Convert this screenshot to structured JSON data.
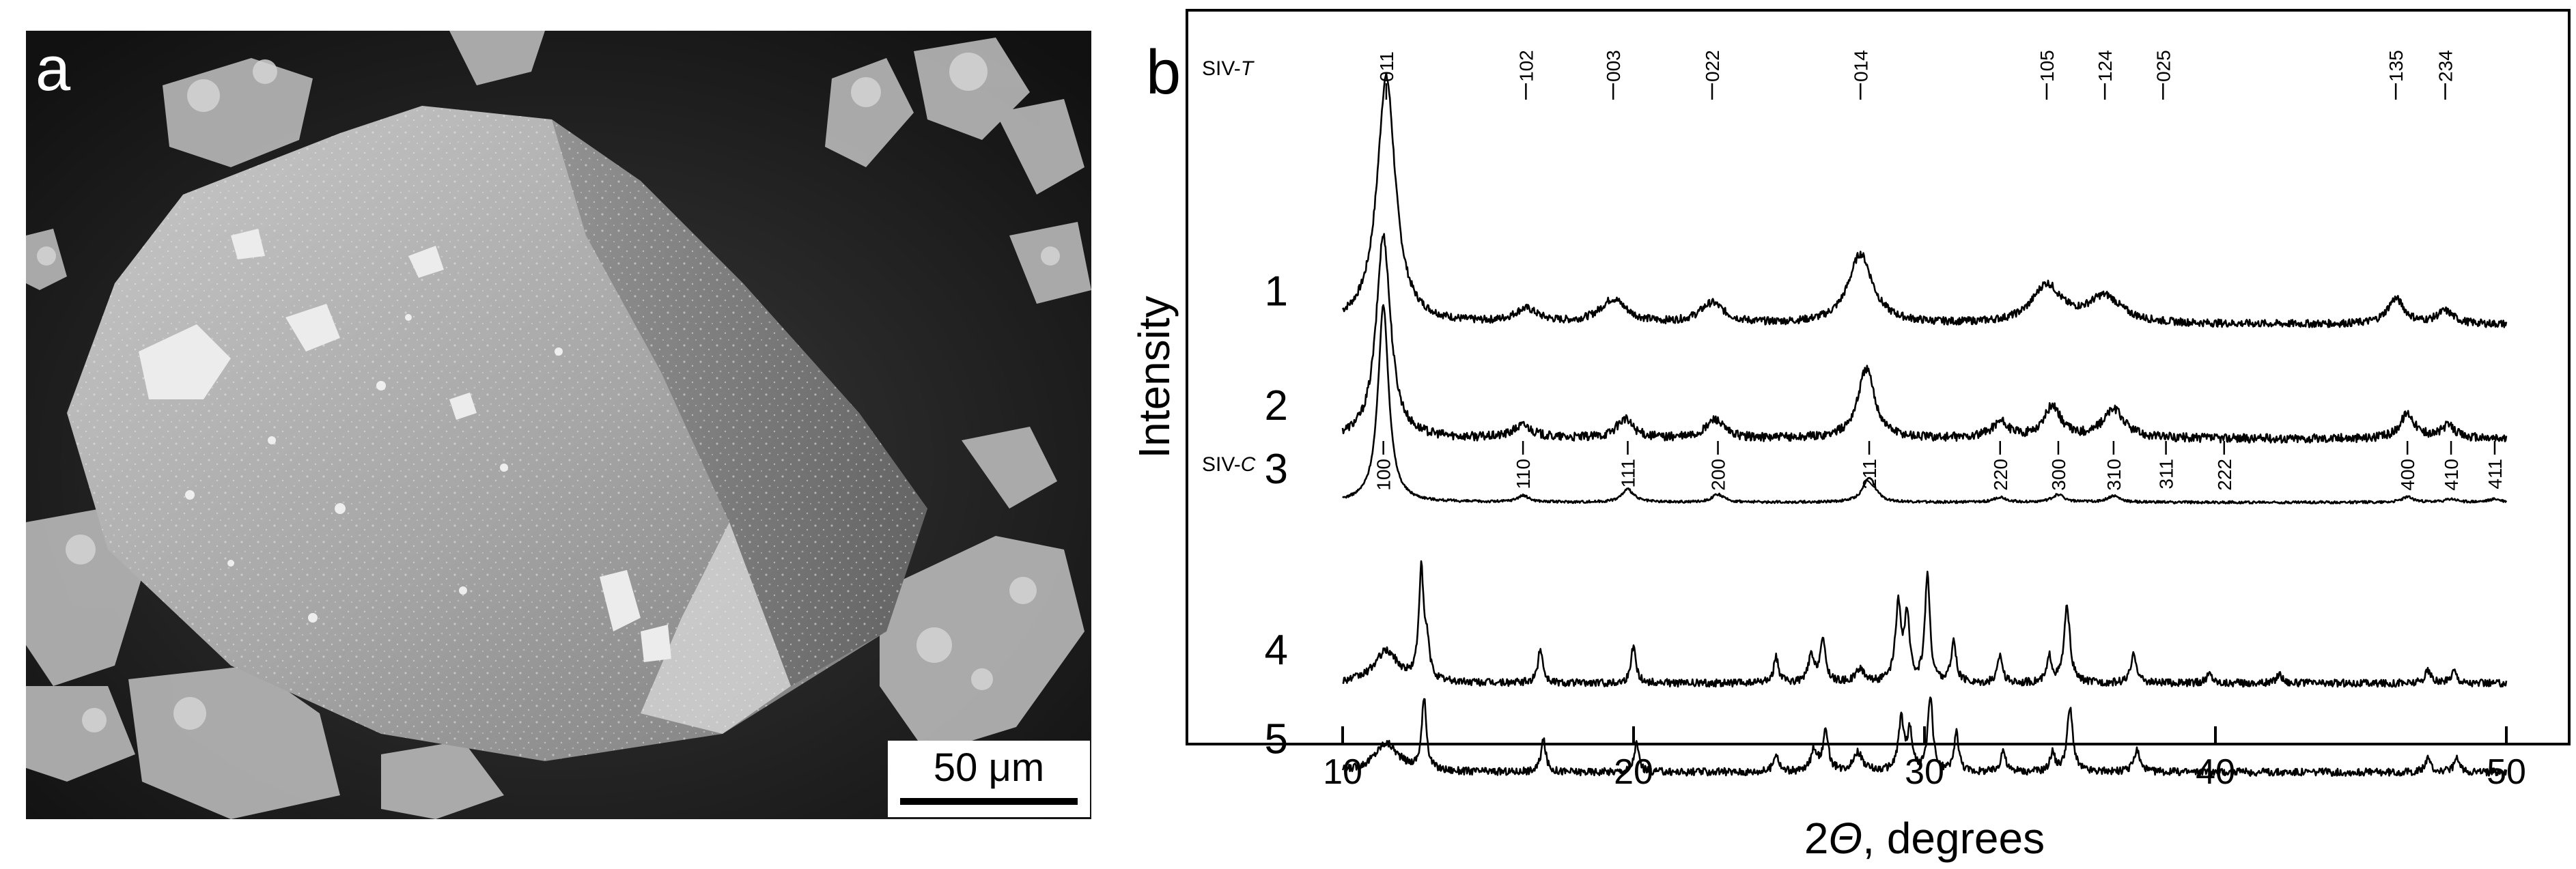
{
  "panels": {
    "a": {
      "label": "a",
      "scale_bar": "50 μm"
    },
    "b": {
      "label": "b"
    }
  },
  "chart_data": {
    "type": "line",
    "xlabel_prefix": "2",
    "xlabel_symbol": "Θ",
    "xlabel_suffix": ", degrees",
    "ylabel": "Intensity",
    "xlim": [
      10,
      50
    ],
    "xticks": [
      10,
      20,
      30,
      40,
      50
    ],
    "y_tick_labels": false,
    "grid": false,
    "reference_sets": [
      {
        "name_prefix": "SIV-",
        "name_suffix": "T",
        "position": "above",
        "reflections": [
          {
            "hkl": "011",
            "x": 11.5
          },
          {
            "hkl": "102",
            "x": 16.3
          },
          {
            "hkl": "003",
            "x": 19.3
          },
          {
            "hkl": "022",
            "x": 22.7
          },
          {
            "hkl": "014",
            "x": 27.8
          },
          {
            "hkl": "105",
            "x": 34.2
          },
          {
            "hkl": "124",
            "x": 36.2
          },
          {
            "hkl": "025",
            "x": 38.2
          },
          {
            "hkl": "135",
            "x": 46.2
          },
          {
            "hkl": "234",
            "x": 47.9
          }
        ]
      },
      {
        "name_prefix": "SIV-",
        "name_suffix": "C",
        "position": "below",
        "reflections": [
          {
            "hkl": "100",
            "x": 11.4
          },
          {
            "hkl": "110",
            "x": 16.2
          },
          {
            "hkl": "111",
            "x": 19.8
          },
          {
            "hkl": "200",
            "x": 22.9
          },
          {
            "hkl": "211",
            "x": 28.1
          },
          {
            "hkl": "220",
            "x": 32.6
          },
          {
            "hkl": "300",
            "x": 34.6
          },
          {
            "hkl": "310",
            "x": 36.5
          },
          {
            "hkl": "311",
            "x": 38.3
          },
          {
            "hkl": "222",
            "x": 40.3
          },
          {
            "hkl": "400",
            "x": 46.6
          },
          {
            "hkl": "410",
            "x": 48.1
          },
          {
            "hkl": "411",
            "x": 49.6
          }
        ]
      }
    ],
    "series": [
      {
        "name": "1",
        "offset": 0.62,
        "baseline": 0.03,
        "noise": 0.006,
        "peaks": [
          {
            "x": 11.5,
            "h": 0.39,
            "w": 0.38
          },
          {
            "x": 16.3,
            "h": 0.022,
            "w": 0.5
          },
          {
            "x": 19.3,
            "h": 0.038,
            "w": 0.55
          },
          {
            "x": 22.7,
            "h": 0.032,
            "w": 0.5
          },
          {
            "x": 27.8,
            "h": 0.11,
            "w": 0.5
          },
          {
            "x": 34.2,
            "h": 0.06,
            "w": 0.6
          },
          {
            "x": 36.2,
            "h": 0.042,
            "w": 0.7
          },
          {
            "x": 46.2,
            "h": 0.04,
            "w": 0.35
          },
          {
            "x": 47.9,
            "h": 0.02,
            "w": 0.35
          }
        ]
      },
      {
        "name": "2",
        "offset": 0.45,
        "baseline": 0.02,
        "noise": 0.007,
        "peaks": [
          {
            "x": 11.4,
            "h": 0.32,
            "w": 0.3
          },
          {
            "x": 16.2,
            "h": 0.02,
            "w": 0.4
          },
          {
            "x": 19.7,
            "h": 0.03,
            "w": 0.35
          },
          {
            "x": 22.8,
            "h": 0.03,
            "w": 0.35
          },
          {
            "x": 28.0,
            "h": 0.11,
            "w": 0.35
          },
          {
            "x": 32.6,
            "h": 0.025,
            "w": 0.35
          },
          {
            "x": 34.4,
            "h": 0.05,
            "w": 0.35
          },
          {
            "x": 36.5,
            "h": 0.045,
            "w": 0.45
          },
          {
            "x": 46.6,
            "h": 0.04,
            "w": 0.3
          },
          {
            "x": 48.0,
            "h": 0.02,
            "w": 0.3
          }
        ]
      },
      {
        "name": "3",
        "offset": 0.365,
        "baseline": 0.005,
        "noise": 0.002,
        "peaks": [
          {
            "x": 11.4,
            "h": 0.31,
            "w": 0.22
          },
          {
            "x": 16.2,
            "h": 0.01,
            "w": 0.25
          },
          {
            "x": 19.8,
            "h": 0.02,
            "w": 0.25
          },
          {
            "x": 22.9,
            "h": 0.012,
            "w": 0.25
          },
          {
            "x": 28.1,
            "h": 0.04,
            "w": 0.25
          },
          {
            "x": 32.6,
            "h": 0.008,
            "w": 0.25
          },
          {
            "x": 34.6,
            "h": 0.012,
            "w": 0.25
          },
          {
            "x": 36.5,
            "h": 0.01,
            "w": 0.25
          },
          {
            "x": 46.6,
            "h": 0.008,
            "w": 0.25
          },
          {
            "x": 48.1,
            "h": 0.005,
            "w": 0.25
          },
          {
            "x": 49.6,
            "h": 0.005,
            "w": 0.25
          }
        ]
      },
      {
        "name": "4",
        "offset": 0.08,
        "baseline": 0.005,
        "noise": 0.006,
        "peaks": [
          {
            "x": 11.5,
            "h": 0.05,
            "w": 0.5
          },
          {
            "x": 12.7,
            "h": 0.17,
            "w": 0.1
          },
          {
            "x": 12.9,
            "h": 0.05,
            "w": 0.1
          },
          {
            "x": 16.8,
            "h": 0.055,
            "w": 0.1
          },
          {
            "x": 20.0,
            "h": 0.06,
            "w": 0.1
          },
          {
            "x": 24.9,
            "h": 0.04,
            "w": 0.1
          },
          {
            "x": 26.1,
            "h": 0.04,
            "w": 0.12
          },
          {
            "x": 26.5,
            "h": 0.065,
            "w": 0.12
          },
          {
            "x": 27.8,
            "h": 0.02,
            "w": 0.2
          },
          {
            "x": 29.1,
            "h": 0.12,
            "w": 0.12
          },
          {
            "x": 29.4,
            "h": 0.1,
            "w": 0.1
          },
          {
            "x": 30.1,
            "h": 0.17,
            "w": 0.1
          },
          {
            "x": 31.0,
            "h": 0.065,
            "w": 0.1
          },
          {
            "x": 32.6,
            "h": 0.045,
            "w": 0.1
          },
          {
            "x": 34.3,
            "h": 0.04,
            "w": 0.1
          },
          {
            "x": 34.9,
            "h": 0.12,
            "w": 0.12
          },
          {
            "x": 37.2,
            "h": 0.045,
            "w": 0.12
          },
          {
            "x": 39.8,
            "h": 0.015,
            "w": 0.12
          },
          {
            "x": 42.2,
            "h": 0.015,
            "w": 0.12
          },
          {
            "x": 47.3,
            "h": 0.02,
            "w": 0.12
          },
          {
            "x": 48.2,
            "h": 0.02,
            "w": 0.12
          }
        ]
      },
      {
        "name": "5",
        "offset": -0.06,
        "baseline": 0.005,
        "noise": 0.006,
        "peaks": [
          {
            "x": 11.5,
            "h": 0.045,
            "w": 0.5
          },
          {
            "x": 12.8,
            "h": 0.11,
            "w": 0.1
          },
          {
            "x": 16.9,
            "h": 0.05,
            "w": 0.1
          },
          {
            "x": 20.1,
            "h": 0.045,
            "w": 0.1
          },
          {
            "x": 24.9,
            "h": 0.03,
            "w": 0.1
          },
          {
            "x": 26.2,
            "h": 0.035,
            "w": 0.12
          },
          {
            "x": 26.6,
            "h": 0.06,
            "w": 0.12
          },
          {
            "x": 27.7,
            "h": 0.03,
            "w": 0.2
          },
          {
            "x": 29.2,
            "h": 0.08,
            "w": 0.12
          },
          {
            "x": 29.5,
            "h": 0.06,
            "w": 0.1
          },
          {
            "x": 30.2,
            "h": 0.12,
            "w": 0.1
          },
          {
            "x": 31.1,
            "h": 0.06,
            "w": 0.1
          },
          {
            "x": 32.7,
            "h": 0.035,
            "w": 0.1
          },
          {
            "x": 34.4,
            "h": 0.03,
            "w": 0.1
          },
          {
            "x": 35.0,
            "h": 0.1,
            "w": 0.12
          },
          {
            "x": 37.3,
            "h": 0.035,
            "w": 0.12
          },
          {
            "x": 47.3,
            "h": 0.02,
            "w": 0.12
          },
          {
            "x": 48.3,
            "h": 0.02,
            "w": 0.12
          }
        ]
      }
    ]
  }
}
